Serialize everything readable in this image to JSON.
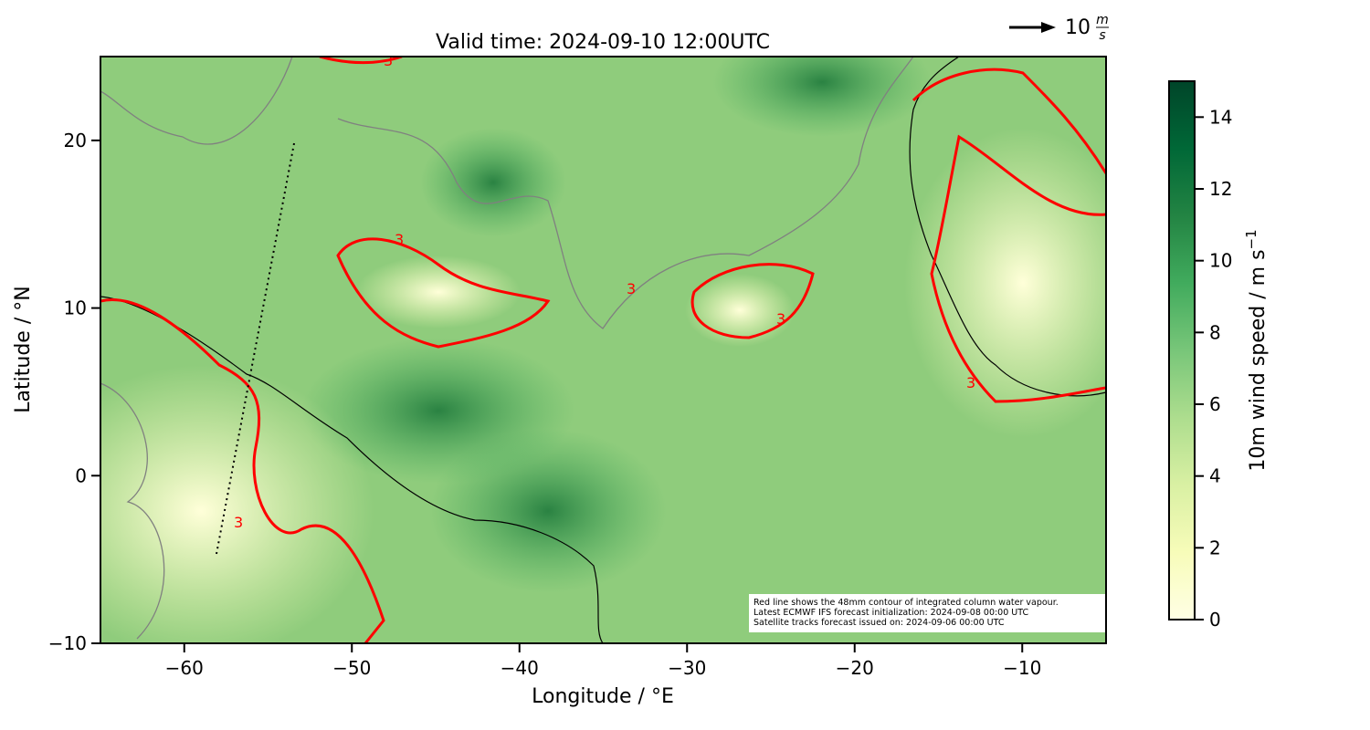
{
  "chart_data": {
    "type": "map",
    "title": "Valid time: 2024-09-10 12:00UTC",
    "x_label": "Longitude / °E",
    "y_label": "Latitude / °N",
    "xlim": [
      -65,
      -5
    ],
    "ylim": [
      -10,
      25
    ],
    "xticks": [
      {
        "value": -60,
        "label": "−60"
      },
      {
        "value": -50,
        "label": "−50"
      },
      {
        "value": -40,
        "label": "−40"
      },
      {
        "value": -30,
        "label": "−30"
      },
      {
        "value": -20,
        "label": "−20"
      },
      {
        "value": -10,
        "label": "−10"
      }
    ],
    "yticks": [
      {
        "value": -10,
        "label": "−10"
      },
      0,
      10,
      20
    ],
    "colorbar": {
      "label": "10m wind speed / m s",
      "label_exponent": "−1",
      "lim": [
        0,
        15
      ],
      "ticks": [
        0,
        2,
        4,
        6,
        8,
        10,
        12,
        14
      ],
      "colors": [
        "#ffffe5",
        "#f7fcb9",
        "#d9f0a3",
        "#addd8e",
        "#78c679",
        "#41ab5d",
        "#238443",
        "#006837",
        "#004529"
      ]
    },
    "reference_arrow": {
      "value": 10,
      "unit_numerator": "m",
      "unit_denominator": "s"
    },
    "contour_label": "3",
    "annotation": [
      "Red line shows the 48mm contour of integrated column water vapour.",
      "Latest ECMWF IFS forecast initialization: 2024-09-08 00:00 UTC",
      "Satellite tracks forecast issued on: 2024-09-06 00:00 UTC"
    ]
  }
}
